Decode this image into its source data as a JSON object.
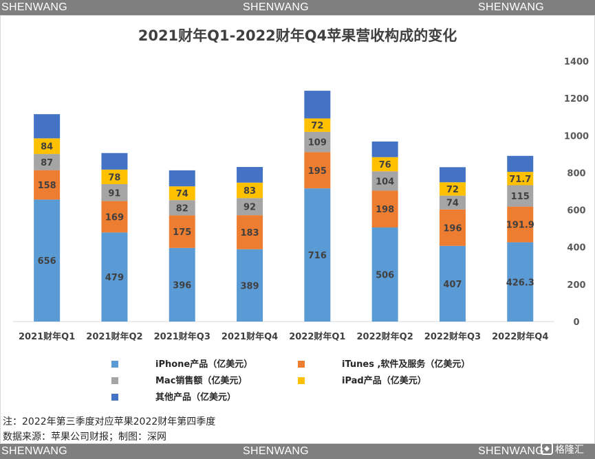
{
  "watermark": {
    "left": "SHENWANG",
    "center": "SHENWANG",
    "right": "SHENWANG"
  },
  "colors": {
    "band": "#7f7f7f",
    "iphone": "#5b9bd5",
    "itunes": "#ed7d31",
    "mac": "#a5a5a5",
    "ipad": "#ffc000",
    "other": "#4472c4"
  },
  "chart_data": {
    "type": "bar",
    "stacked": true,
    "title": "2021财年Q1-2022财年Q4苹果营收构成的变化",
    "categories": [
      "2021财年Q1",
      "2021财年Q2",
      "2021财年Q3",
      "2021财年Q4",
      "2022财年Q1",
      "2022财年Q2",
      "2022财年Q3",
      "2022财年Q4"
    ],
    "series": [
      {
        "name": "iPhone产品（亿美元）",
        "values": [
          656,
          479,
          396,
          389,
          716,
          506,
          407,
          426.3
        ],
        "labels": [
          "656",
          "479",
          "396",
          "389",
          "716",
          "506",
          "407",
          "426.3"
        ]
      },
      {
        "name": "iTunes ,软件及服务（亿美元）",
        "values": [
          158,
          169,
          175,
          183,
          195,
          198,
          196,
          191.9
        ],
        "labels": [
          "158",
          "169",
          "175",
          "183",
          "195",
          "198",
          "196",
          "191.9"
        ]
      },
      {
        "name": "Mac销售额（亿美元）",
        "values": [
          87,
          91,
          82,
          92,
          109,
          104,
          74,
          115
        ],
        "labels": [
          "87",
          "91",
          "82",
          "92",
          "109",
          "104",
          "74",
          "115"
        ]
      },
      {
        "name": "iPad产品（亿美元）",
        "values": [
          84,
          78,
          74,
          83,
          72,
          76,
          72,
          71.7
        ],
        "labels": [
          "84",
          "78",
          "74",
          "83",
          "72",
          "76",
          "72",
          "71.7"
        ]
      },
      {
        "name": "其他产品（亿美元）",
        "values": [
          130,
          89,
          86,
          84,
          149,
          84,
          81,
          86
        ]
      }
    ],
    "ylim": [
      0,
      1400
    ],
    "yticks": [
      "0",
      "200",
      "400",
      "600",
      "800",
      "1000",
      "1200",
      "1400"
    ],
    "y_axis_side": "right",
    "grid": false,
    "legend_position": "bottom"
  },
  "notes": {
    "line1": "注：2022年第三季度对应苹果2022财年第四季度",
    "line2": "数据来源：苹果公司财报；制图：深网"
  },
  "logo_text": "格隆汇"
}
